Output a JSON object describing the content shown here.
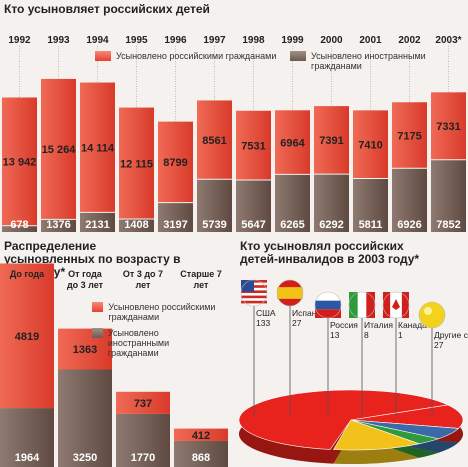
{
  "colors": {
    "russian": "#e8402e",
    "foreign": "#7a655b",
    "background": "#f4f1ee"
  },
  "chart_data": [
    {
      "type": "bar",
      "stacked": true,
      "title": "Кто усыновляет российских детей",
      "categories": [
        "1992",
        "1993",
        "1994",
        "1995",
        "1996",
        "1997",
        "1998",
        "1999",
        "2000",
        "2001",
        "2002",
        "2003*"
      ],
      "series": [
        {
          "name": "Усыновлено российскими гражданами",
          "values": [
            13942,
            15264,
            14114,
            12115,
            8799,
            8561,
            7531,
            6964,
            7391,
            7410,
            7175,
            7331
          ],
          "labels": [
            "13 942",
            "15 264",
            "14 114",
            "12 115",
            "8799",
            "8561",
            "7531",
            "6964",
            "7391",
            "7410",
            "7175",
            "7331"
          ]
        },
        {
          "name": "Усыновлено иностранными гражданами",
          "values": [
            678,
            1376,
            2131,
            1408,
            3197,
            5739,
            5647,
            6265,
            6292,
            5811,
            6926,
            7852
          ],
          "labels": [
            "678",
            "1376",
            "2131",
            "1408",
            "3197",
            "5739",
            "5647",
            "6265",
            "6292",
            "5811",
            "6926",
            "7852"
          ]
        }
      ]
    },
    {
      "type": "bar",
      "stacked": true,
      "title": "Распределение усыновленных по возрасту в 2003 году*",
      "categories": [
        "До года",
        "От года до 3 лет",
        "От 3 до 7 лет",
        "Старше 7 лет"
      ],
      "series": [
        {
          "name": "Усыновлено российскими гражданами",
          "values": [
            4819,
            1363,
            737,
            412
          ]
        },
        {
          "name": "Усыновлено иностранными гражданами",
          "values": [
            1964,
            3250,
            1770,
            868
          ]
        }
      ]
    },
    {
      "type": "pie",
      "title": "Кто усыновлял российских детей-инвалидов в 2003 году*",
      "categories": [
        "США",
        "Испания",
        "Россия",
        "Италия",
        "Канада",
        "Другие страны"
      ],
      "values": [
        133,
        27,
        13,
        8,
        1,
        27
      ],
      "colors": [
        "#e8221c",
        "#e8221c",
        "#3b6aa8",
        "#2e9a3c",
        "#e8221c",
        "#f2c21a"
      ],
      "flags": [
        "usa-flag",
        "spain-flag",
        "russia-flag",
        "italy-flag",
        "canada-flag",
        "ball"
      ]
    }
  ]
}
